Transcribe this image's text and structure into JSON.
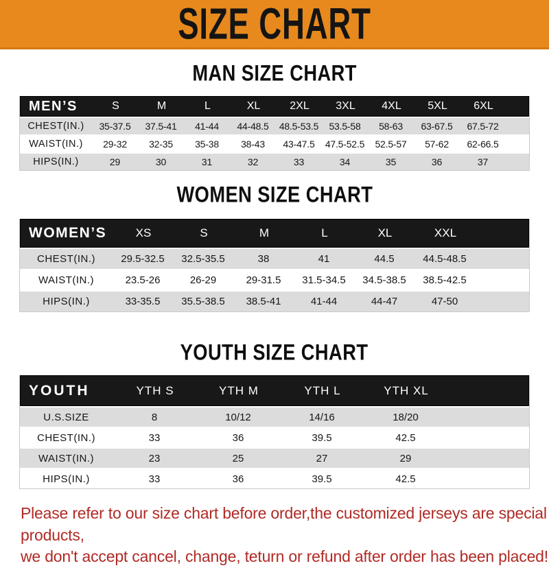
{
  "banner": {
    "title": "SIZE CHART"
  },
  "men": {
    "title": "MAN SIZE CHART",
    "table": {
      "label": "MEN’S",
      "columns": [
        "S",
        "M",
        "L",
        "XL",
        "2XL",
        "3XL",
        "4XL",
        "5XL",
        "6XL"
      ],
      "rows": [
        {
          "label": "CHEST(IN.)",
          "values": [
            "35-37.5",
            "37.5-41",
            "41-44",
            "44-48.5",
            "48.5-53.5",
            "53.5-58",
            "58-63",
            "63-67.5",
            "67.5-72"
          ]
        },
        {
          "label": "WAIST(IN.)",
          "values": [
            "29-32",
            "32-35",
            "35-38",
            "38-43",
            "43-47.5",
            "47.5-52.5",
            "52.5-57",
            "57-62",
            "62-66.5"
          ]
        },
        {
          "label": "HIPS(IN.)",
          "values": [
            "29",
            "30",
            "31",
            "32",
            "33",
            "34",
            "35",
            "36",
            "37"
          ]
        }
      ]
    }
  },
  "women": {
    "title": "WOMEN SIZE CHART",
    "table": {
      "label": "WOMEN’S",
      "columns": [
        "XS",
        "S",
        "M",
        "L",
        "XL",
        "XXL"
      ],
      "rows": [
        {
          "label": "CHEST(IN.)",
          "values": [
            "29.5-32.5",
            "32.5-35.5",
            "38",
            "41",
            "44.5",
            "44.5-48.5"
          ]
        },
        {
          "label": "WAIST(IN.)",
          "values": [
            "23.5-26",
            "26-29",
            "29-31.5",
            "31.5-34.5",
            "34.5-38.5",
            "38.5-42.5"
          ]
        },
        {
          "label": "HIPS(IN.)",
          "values": [
            "33-35.5",
            "35.5-38.5",
            "38.5-41",
            "41-44",
            "44-47",
            "47-50"
          ]
        }
      ]
    }
  },
  "youth": {
    "title": "YOUTH SIZE CHART",
    "table": {
      "label": "YOUTH",
      "columns": [
        "YTH S",
        "YTH M",
        "YTH L",
        "YTH XL"
      ],
      "rows": [
        {
          "label": "U.S.SIZE",
          "values": [
            "8",
            "10/12",
            "14/16",
            "18/20"
          ]
        },
        {
          "label": "CHEST(IN.)",
          "values": [
            "33",
            "36",
            "39.5",
            "42.5"
          ]
        },
        {
          "label": "WAIST(IN.)",
          "values": [
            "23",
            "25",
            "27",
            "29"
          ]
        },
        {
          "label": "HIPS(IN.)",
          "values": [
            "33",
            "36",
            "39.5",
            "42.5"
          ]
        }
      ]
    }
  },
  "footer": {
    "line1": "Please refer to our size chart before order,the customized jerseys are special products,",
    "line2": "we don't accept cancel, change, teturn or refund after order has been placed!"
  },
  "colors": {
    "banner_orange": "#E8891E",
    "banner_border": "#D37A10",
    "header_black": "#181818",
    "row_gray": "#DCDCDC",
    "footer_red": "#B02A25",
    "text_black": "#161616"
  }
}
